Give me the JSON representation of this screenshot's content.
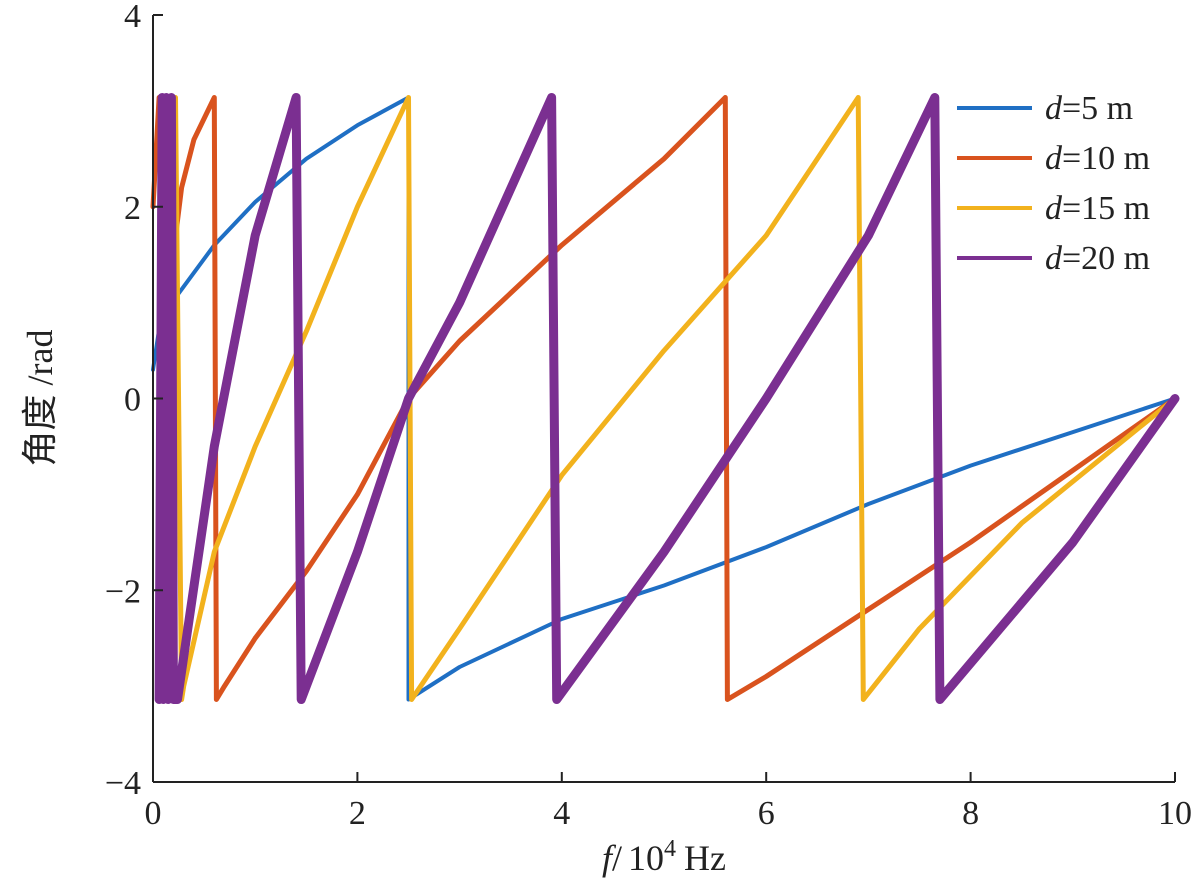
{
  "chart_data": {
    "type": "line",
    "title": "",
    "xlabel": {
      "var": "f",
      "sep": "/",
      "unit_prefix": "10",
      "unit_exp": "4",
      "unit_suffix": "Hz"
    },
    "ylabel": "角度 /rad",
    "xlim": [
      0,
      10
    ],
    "ylim": [
      -4,
      4
    ],
    "xticks": [
      0,
      2,
      4,
      6,
      8,
      10
    ],
    "yticks": [
      -4,
      -2,
      0,
      2,
      4
    ],
    "ytick_labels": [
      "−4",
      "−2",
      "0",
      "2",
      "4"
    ],
    "grid": false,
    "legend_position": "top-right",
    "series": [
      {
        "name": "d=5 m",
        "var": "d",
        "rest": "=5 m",
        "color": "#1f6fc4",
        "line_width": 4,
        "x": [
          0.0,
          0.1,
          0.15,
          0.6,
          1.0,
          1.5,
          2.0,
          2.5,
          2.5,
          3.0,
          4.0,
          5.0,
          6.0,
          7.0,
          8.0,
          9.0,
          10.0
        ],
        "y": [
          0.3,
          1.0,
          0.95,
          1.6,
          2.05,
          2.5,
          2.85,
          3.14,
          -3.14,
          -2.8,
          -2.3,
          -1.95,
          -1.55,
          -1.1,
          -0.7,
          -0.35,
          0.0
        ]
      },
      {
        "name": "d=10 m",
        "var": "d",
        "rest": "=10 m",
        "color": "#d9531e",
        "line_width": 5,
        "x": [
          0.0,
          0.06,
          0.1,
          0.14,
          0.14,
          0.28,
          0.4,
          0.6,
          0.62,
          0.7,
          1.0,
          1.5,
          2.0,
          2.5,
          3.0,
          4.0,
          5.0,
          5.6,
          5.62,
          6.0,
          7.0,
          8.0,
          9.0,
          10.0
        ],
        "y": [
          2.0,
          3.14,
          2.9,
          3.14,
          1.0,
          2.2,
          2.7,
          3.14,
          -3.14,
          -3.0,
          -2.5,
          -1.8,
          -1.0,
          0.0,
          0.6,
          1.6,
          2.5,
          3.14,
          -3.14,
          -2.9,
          -2.2,
          -1.5,
          -0.75,
          0.0
        ]
      },
      {
        "name": "d=15 m",
        "var": "d",
        "rest": "=15 m",
        "color": "#f2b21d",
        "line_width": 5,
        "x": [
          0.05,
          0.09,
          0.1,
          0.13,
          0.17,
          0.22,
          0.28,
          0.3,
          0.6,
          1.0,
          1.5,
          2.0,
          2.5,
          2.53,
          3.0,
          4.0,
          5.0,
          6.0,
          6.9,
          6.95,
          7.5,
          8.5,
          10.0
        ],
        "y": [
          -3.14,
          3.14,
          -3.14,
          3.14,
          -3.14,
          3.14,
          -3.14,
          -3.0,
          -1.6,
          -0.5,
          0.7,
          2.0,
          3.14,
          -3.14,
          -2.4,
          -0.8,
          0.5,
          1.7,
          3.14,
          -3.14,
          -2.4,
          -1.3,
          0.0
        ]
      },
      {
        "name": "d=20 m",
        "var": "d",
        "rest": "=20 m",
        "color": "#7b2f91",
        "line_width": 9,
        "x": [
          0.06,
          0.09,
          0.1,
          0.13,
          0.15,
          0.18,
          0.2,
          0.24,
          0.6,
          1.0,
          1.4,
          1.45,
          2.0,
          2.5,
          3.0,
          3.9,
          3.95,
          5.0,
          6.0,
          7.0,
          7.65,
          7.7,
          9.0,
          10.0
        ],
        "y": [
          -3.14,
          3.14,
          -3.14,
          3.14,
          -3.14,
          3.14,
          -3.14,
          -3.14,
          -0.5,
          1.7,
          3.14,
          -3.14,
          -1.6,
          0.0,
          1.0,
          3.14,
          -3.14,
          -1.6,
          0.0,
          1.7,
          3.14,
          -3.14,
          -1.5,
          0.0
        ]
      }
    ]
  }
}
